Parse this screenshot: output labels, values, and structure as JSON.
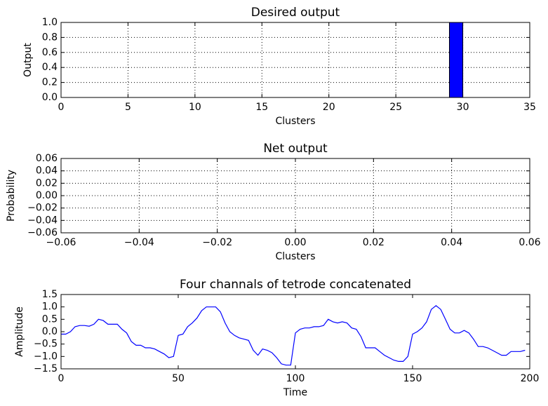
{
  "chart_data": [
    {
      "type": "bar",
      "title": "Desired output",
      "xlabel": "Clusters",
      "ylabel": "Output",
      "color": "#0000ff",
      "grid": true,
      "x": [
        0,
        1,
        2,
        3,
        4,
        5,
        6,
        7,
        8,
        9,
        10,
        11,
        12,
        13,
        14,
        15,
        16,
        17,
        18,
        19,
        20,
        21,
        22,
        23,
        24,
        25,
        26,
        27,
        28,
        29,
        30,
        31,
        32,
        33,
        34
      ],
      "values": [
        0,
        0,
        0,
        0,
        0,
        0,
        0,
        0,
        0,
        0,
        0,
        0,
        0,
        0,
        0,
        0,
        0,
        0,
        0,
        0,
        0,
        0,
        0,
        0,
        0,
        0,
        0,
        0,
        0,
        1,
        0,
        0,
        0,
        0,
        0
      ],
      "xlim": [
        0,
        35
      ],
      "xticks": [
        0,
        5,
        10,
        15,
        20,
        25,
        30,
        35
      ],
      "ylim": [
        0,
        1
      ],
      "yticks": [
        {
          "value": 0,
          "label": "0.0"
        },
        {
          "value": 0.2,
          "label": "0.2"
        },
        {
          "value": 0.4,
          "label": "0.4"
        },
        {
          "value": 0.6,
          "label": "0.6"
        },
        {
          "value": 0.8,
          "label": "0.8"
        },
        {
          "value": 1,
          "label": "1.0"
        }
      ]
    },
    {
      "type": "bar",
      "title": "Net output",
      "xlabel": "Clusters",
      "ylabel": "Probability",
      "color": "#0000ff",
      "grid": true,
      "x": [],
      "values": [],
      "xlim": [
        -0.06,
        0.06
      ],
      "xticks": [
        {
          "value": -0.06,
          "label": "−0.06"
        },
        {
          "value": -0.04,
          "label": "−0.04"
        },
        {
          "value": -0.02,
          "label": "−0.02"
        },
        {
          "value": 0,
          "label": "0.00"
        },
        {
          "value": 0.02,
          "label": "0.02"
        },
        {
          "value": 0.04,
          "label": "0.04"
        },
        {
          "value": 0.06,
          "label": "0.06"
        }
      ],
      "ylim": [
        -0.06,
        0.06
      ],
      "yticks": [
        {
          "value": -0.06,
          "label": "−0.06"
        },
        {
          "value": -0.04,
          "label": "−0.04"
        },
        {
          "value": -0.02,
          "label": "−0.02"
        },
        {
          "value": 0,
          "label": "0.00"
        },
        {
          "value": 0.02,
          "label": "0.02"
        },
        {
          "value": 0.04,
          "label": "0.04"
        },
        {
          "value": 0.06,
          "label": "0.06"
        }
      ]
    },
    {
      "type": "line",
      "title": "Four channals of tetrode concatenated",
      "xlabel": "Time",
      "ylabel": "Amplitude",
      "color": "#0000ff",
      "grid": false,
      "x": [
        0,
        2,
        4,
        6,
        8,
        10,
        12,
        14,
        16,
        18,
        20,
        22,
        24,
        26,
        28,
        30,
        32,
        34,
        36,
        38,
        40,
        42,
        44,
        46,
        48,
        50,
        52,
        54,
        56,
        58,
        60,
        62,
        64,
        66,
        68,
        70,
        72,
        74,
        76,
        78,
        80,
        82,
        84,
        86,
        88,
        90,
        92,
        94,
        96,
        98,
        100,
        102,
        104,
        106,
        108,
        110,
        112,
        114,
        116,
        118,
        120,
        122,
        124,
        126,
        128,
        130,
        132,
        134,
        136,
        138,
        140,
        142,
        144,
        146,
        148,
        150,
        152,
        154,
        156,
        158,
        160,
        162,
        164,
        166,
        168,
        170,
        172,
        174,
        176,
        178,
        180,
        182,
        184,
        186,
        188,
        190,
        192,
        194,
        196,
        198
      ],
      "values": [
        -0.1,
        -0.1,
        0.0,
        0.2,
        0.25,
        0.25,
        0.22,
        0.3,
        0.5,
        0.45,
        0.3,
        0.3,
        0.3,
        0.1,
        -0.05,
        -0.4,
        -0.55,
        -0.55,
        -0.65,
        -0.65,
        -0.7,
        -0.8,
        -0.9,
        -1.05,
        -1.0,
        -0.15,
        -0.1,
        0.2,
        0.35,
        0.55,
        0.85,
        1.0,
        1.0,
        1.0,
        0.8,
        0.35,
        0.0,
        -0.15,
        -0.25,
        -0.3,
        -0.35,
        -0.75,
        -0.95,
        -0.7,
        -0.75,
        -0.85,
        -1.05,
        -1.3,
        -1.35,
        -1.35,
        -0.05,
        0.1,
        0.15,
        0.15,
        0.2,
        0.2,
        0.25,
        0.5,
        0.4,
        0.35,
        0.4,
        0.35,
        0.15,
        0.1,
        -0.2,
        -0.65,
        -0.65,
        -0.65,
        -0.8,
        -0.95,
        -1.05,
        -1.15,
        -1.2,
        -1.2,
        -1.0,
        -0.1,
        0.0,
        0.15,
        0.4,
        0.9,
        1.05,
        0.9,
        0.5,
        0.1,
        -0.05,
        -0.05,
        0.05,
        -0.05,
        -0.3,
        -0.6,
        -0.6,
        -0.65,
        -0.75,
        -0.85,
        -0.95,
        -0.95,
        -0.8,
        -0.8,
        -0.8,
        -0.75
      ],
      "xlim": [
        0,
        200
      ],
      "xticks": [
        0,
        50,
        100,
        150,
        200
      ],
      "ylim": [
        -1.5,
        1.5
      ],
      "yticks": [
        {
          "value": -1.5,
          "label": "−1.5"
        },
        {
          "value": -1,
          "label": "−1.0"
        },
        {
          "value": -0.5,
          "label": "−0.5"
        },
        {
          "value": 0,
          "label": "0.0"
        },
        {
          "value": 0.5,
          "label": "0.5"
        },
        {
          "value": 1,
          "label": "1.0"
        },
        {
          "value": 1.5,
          "label": "1.5"
        }
      ]
    }
  ]
}
